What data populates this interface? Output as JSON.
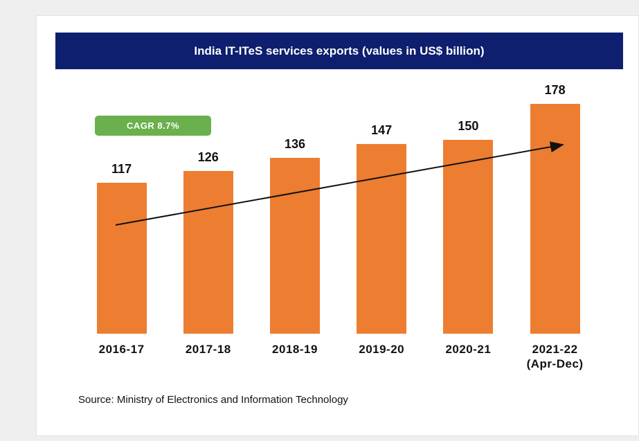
{
  "chart_data": {
    "type": "bar",
    "title": "India IT-ITeS services exports (values in US$ billion)",
    "categories": [
      "2016-17",
      "2017-18",
      "2018-19",
      "2019-20",
      "2020-21",
      "2021-22 (Apr-Dec)"
    ],
    "values": [
      117,
      126,
      136,
      147,
      150,
      178
    ],
    "color": "#ed7d31",
    "annotation": "CAGR 8.7%",
    "source": "Source: Ministry of Electronics and Information Technology"
  }
}
